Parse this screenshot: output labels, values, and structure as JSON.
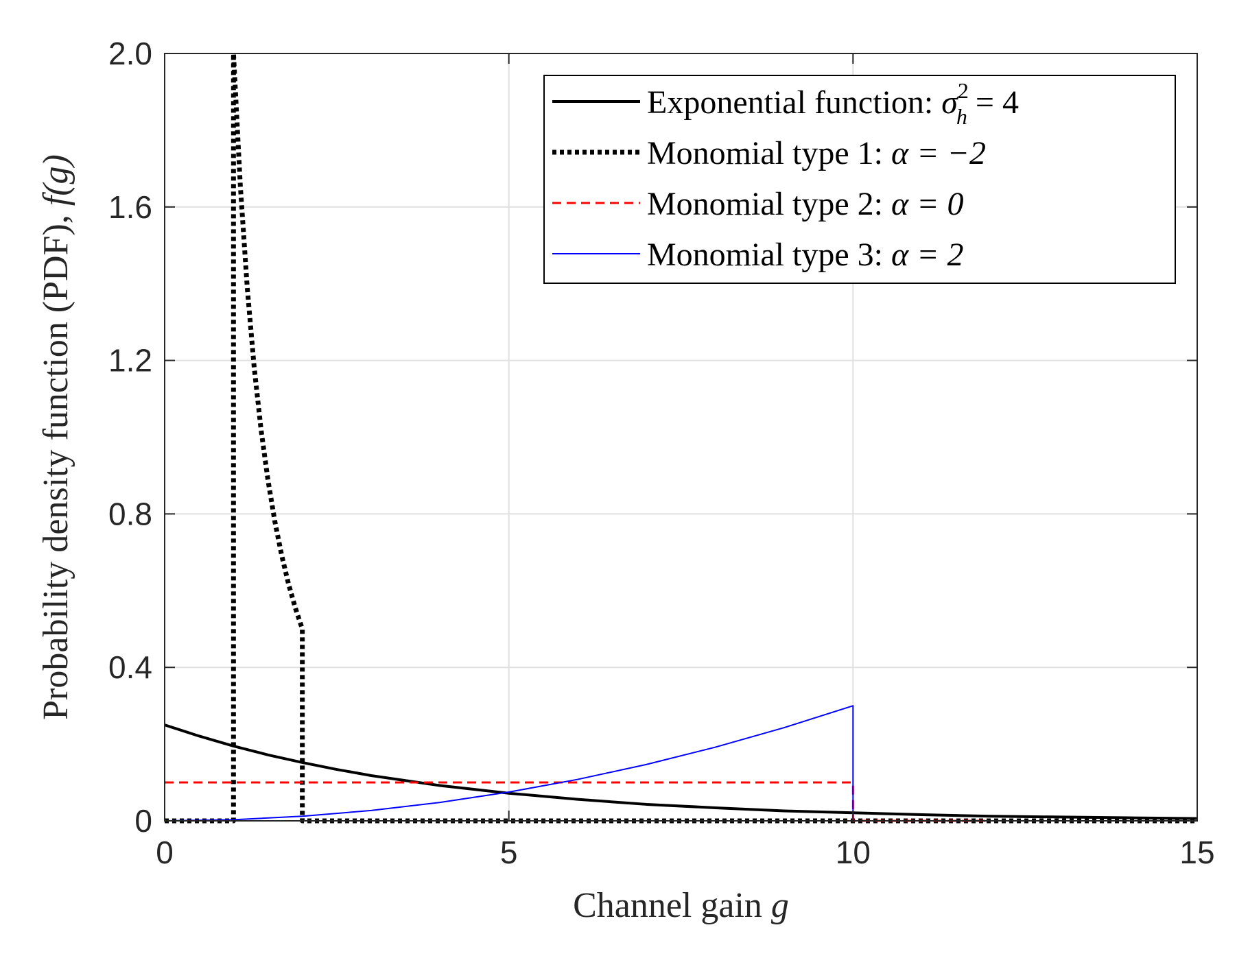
{
  "chart_data": {
    "type": "line",
    "title": "",
    "xlabel": "Channel gain",
    "xlabel_var": "g",
    "ylabel": "Probability density function (PDF),",
    "ylabel_var": "f(g)",
    "xlim": [
      0,
      15
    ],
    "ylim": [
      0,
      2
    ],
    "xticks": [
      0,
      5,
      10,
      15
    ],
    "xtick_labels": [
      "0",
      "5",
      "10",
      "15"
    ],
    "yticks": [
      0,
      0.4,
      0.8,
      1.2,
      1.6,
      2.0
    ],
    "ytick_labels": [
      "0",
      "0.4",
      "0.8",
      "1.2",
      "1.6",
      "2.0"
    ],
    "grid": true,
    "legend_position": "top-right",
    "series": [
      {
        "name": "Exponential function:",
        "math": "σ²_h = 4",
        "math_base": "σ",
        "math_sup": "2",
        "math_sub": "h",
        "math_rest": " = 4",
        "color": "#000000",
        "style": "solid",
        "x": [
          0,
          0.5,
          1,
          1.5,
          2,
          2.5,
          3,
          4,
          5,
          6,
          7,
          8,
          9,
          10,
          11,
          12,
          13,
          14,
          15
        ],
        "y": [
          0.25,
          0.221,
          0.195,
          0.172,
          0.152,
          0.134,
          0.118,
          0.092,
          0.072,
          0.056,
          0.043,
          0.034,
          0.026,
          0.021,
          0.016,
          0.012,
          0.01,
          0.008,
          0.006
        ]
      },
      {
        "name": "Monomial type 1:",
        "math": "α = −2",
        "color": "#000000",
        "style": "dotted",
        "x": [
          0,
          1,
          1,
          1.1,
          1.2,
          1.3,
          1.4,
          1.5,
          1.6,
          1.7,
          1.8,
          1.9,
          2,
          2,
          15
        ],
        "y": [
          0,
          0,
          2.0,
          1.653,
          1.389,
          1.183,
          1.02,
          0.889,
          0.781,
          0.692,
          0.617,
          0.554,
          0.5,
          0,
          0
        ]
      },
      {
        "name": "Monomial type 2:",
        "math": "α = 0",
        "color": "#ff0000",
        "style": "dashed",
        "x": [
          0,
          10,
          10,
          12
        ],
        "y": [
          0.1,
          0.1,
          0,
          0
        ]
      },
      {
        "name": "Monomial type 3:",
        "math": "α = 2",
        "color": "#0000ff",
        "style": "solid-thin",
        "x": [
          0,
          1,
          2,
          3,
          4,
          5,
          6,
          7,
          8,
          9,
          10,
          10,
          12
        ],
        "y": [
          0,
          0.003,
          0.012,
          0.027,
          0.048,
          0.075,
          0.108,
          0.147,
          0.192,
          0.243,
          0.3,
          0,
          0
        ]
      }
    ]
  }
}
